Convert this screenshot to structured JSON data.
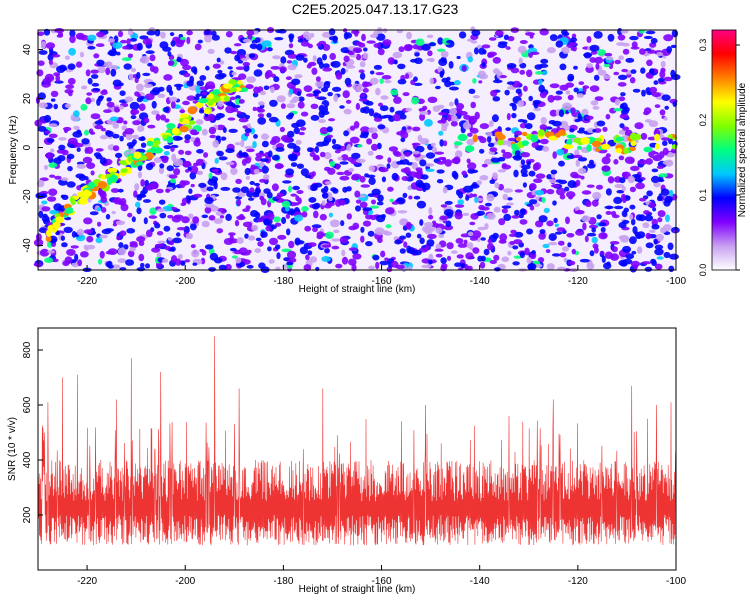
{
  "figure_title": "C2E5.2025.047.13.17.G23",
  "chart_data": [
    {
      "type": "heatmap",
      "title": "C2E5.2025.047.13.17.G23",
      "xlabel": "Height of straight line (km)",
      "ylabel": "Frequency (Hz)",
      "xlim": [
        -230,
        -100
      ],
      "ylim": [
        -50,
        48
      ],
      "xticks": [
        -220,
        -200,
        -180,
        -160,
        -140,
        -120,
        -100
      ],
      "yticks": [
        -40,
        -20,
        0,
        20,
        40
      ],
      "colorbar": {
        "label": "Normalized spectral amplitude",
        "range": [
          0,
          0.32
        ],
        "ticks": [
          0.0,
          0.1,
          0.2,
          0.3
        ],
        "colormap": [
          "#ffffff",
          "#c8a0f0",
          "#8000ff",
          "#0000ff",
          "#00c8ff",
          "#00ff80",
          "#80ff00",
          "#ffff00",
          "#ff8000",
          "#ff0000",
          "#ff0080"
        ]
      },
      "features": [
        {
          "description": "diagonal high-amplitude streak",
          "points": [
            [
              -228,
              -35
            ],
            [
              -222,
              -22
            ],
            [
              -216,
              -13
            ],
            [
              -210,
              -5
            ],
            [
              -204,
              4
            ],
            [
              -198,
              14
            ],
            [
              -192,
              22
            ],
            [
              -188,
              26
            ]
          ]
        },
        {
          "description": "horizontal band",
          "points": [
            [
              -145,
              2
            ],
            [
              -125,
              4
            ],
            [
              -112,
              1
            ],
            [
              -100,
              3
            ]
          ]
        }
      ]
    },
    {
      "type": "line",
      "xlabel": "Height of straight line (km)",
      "ylabel": "SNR (10 * v/v)",
      "xlim": [
        -230,
        -100
      ],
      "ylim": [
        0,
        880
      ],
      "xticks": [
        -220,
        -200,
        -180,
        -160,
        -140,
        -120,
        -100
      ],
      "yticks": [
        200,
        400,
        600,
        800
      ],
      "color": "#ee3333",
      "baseline_band": [
        90,
        390
      ],
      "peaks": [
        {
          "x": -228,
          "y": 610
        },
        {
          "x": -225,
          "y": 700
        },
        {
          "x": -222,
          "y": 710
        },
        {
          "x": -214,
          "y": 620
        },
        {
          "x": -211,
          "y": 770
        },
        {
          "x": -205,
          "y": 720
        },
        {
          "x": -194,
          "y": 850
        },
        {
          "x": -189,
          "y": 660
        },
        {
          "x": -172,
          "y": 660
        },
        {
          "x": -151,
          "y": 600
        },
        {
          "x": -134,
          "y": 560
        },
        {
          "x": -125,
          "y": 620
        },
        {
          "x": -109,
          "y": 670
        },
        {
          "x": -104,
          "y": 600
        },
        {
          "x": -101,
          "y": 610
        }
      ]
    }
  ]
}
